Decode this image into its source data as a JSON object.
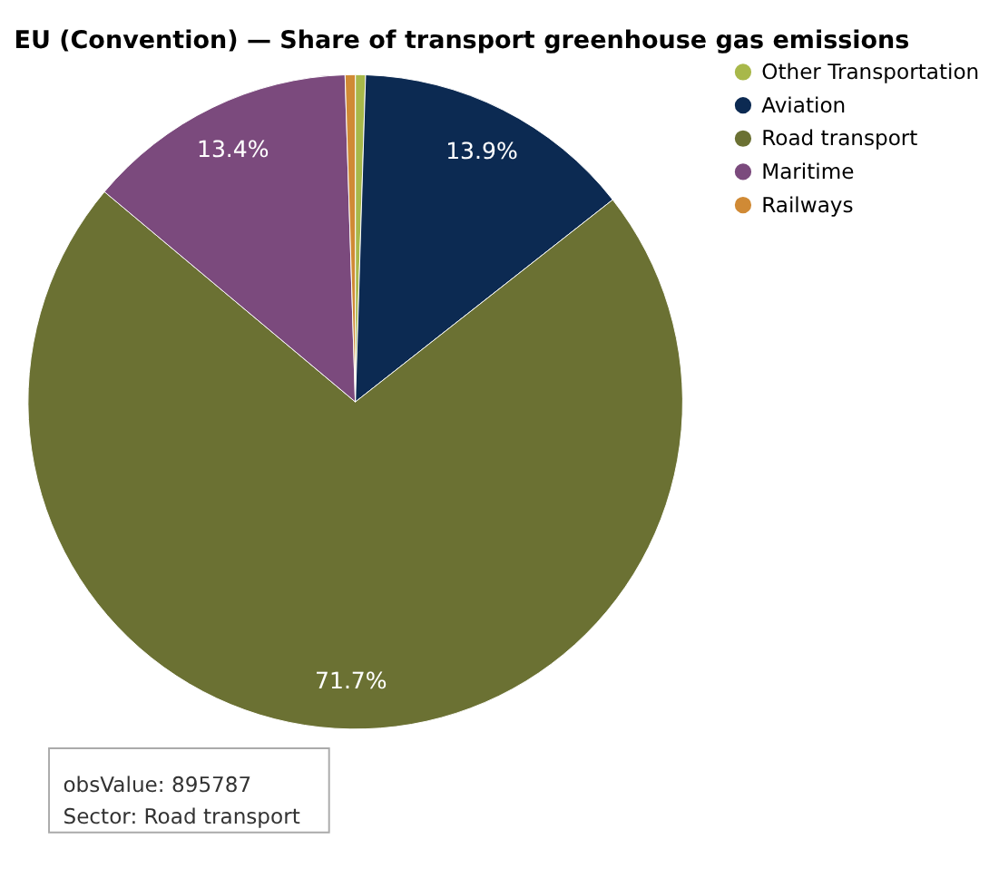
{
  "chart_data": {
    "type": "pie",
    "title": "EU (Convention) — Share of transport greenhouse gas emissions",
    "categories": [
      "Other Transportation",
      "Aviation",
      "Road transport",
      "Maritime",
      "Railways"
    ],
    "values": [
      0.5,
      13.9,
      71.7,
      13.4,
      0.5
    ],
    "colors": [
      "#a8b84a",
      "#0c2a52",
      "#6b7133",
      "#7b4a7d",
      "#d08a35"
    ],
    "value_labels": [
      null,
      "13.9%",
      "71.7%",
      "13.4%",
      null
    ],
    "legend": "top right",
    "annotations": [
      "obsValue: 895787",
      "Sector: Road transport"
    ]
  }
}
